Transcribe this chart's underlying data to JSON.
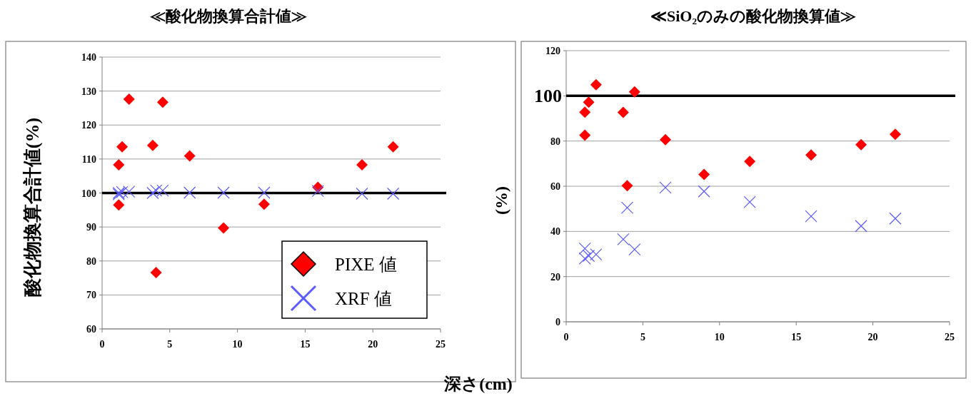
{
  "chart_data": [
    {
      "type": "scatter",
      "title": "≪酸化物換算合計値≫",
      "xlabel": "深さ(cm)",
      "ylabel": "酸化物換算合計値(%)",
      "x": [
        1.23,
        1.48,
        1.99,
        1.23,
        3.74,
        4.48,
        3.99,
        6.47,
        8.97,
        11.97,
        15.94,
        19.2,
        21.5
      ],
      "series": [
        {
          "name": "PIXE 値",
          "color": "#ff0000",
          "marker": "diamond",
          "values": [
            108.3,
            113.6,
            127.6,
            96.5,
            114.0,
            126.7,
            76.6,
            110.9,
            89.7,
            96.7,
            101.7,
            108.3,
            113.6
          ]
        },
        {
          "name": "XRF 値",
          "color": "#5a5aff",
          "marker": "cross",
          "values": [
            99.6,
            100.3,
            100.4,
            100.0,
            100.0,
            100.7,
            100.7,
            100.1,
            100.1,
            100.1,
            100.6,
            99.8,
            99.8
          ]
        }
      ],
      "xlim": [
        0,
        25
      ],
      "xticks": [
        0,
        5,
        10,
        15,
        20,
        25
      ],
      "ylim": [
        60,
        140
      ],
      "yticks": [
        60,
        70,
        80,
        90,
        100,
        110,
        120,
        130,
        140
      ],
      "grid": "y",
      "legend": "bottom right",
      "ref_lines": [
        {
          "axis": "y",
          "value": 100,
          "color": "#000000"
        }
      ]
    },
    {
      "type": "scatter",
      "title": "≪SiO₂のみの酸化物換算値≫",
      "ylabel": "(%)",
      "x": [
        1.22,
        1.22,
        1.47,
        1.95,
        3.72,
        3.98,
        4.46,
        6.47,
        8.99,
        11.97,
        15.97,
        19.23,
        21.46
      ],
      "series": [
        {
          "color": "#ff0000",
          "marker": "diamond",
          "values": [
            92.8,
            82.6,
            97.2,
            104.9,
            92.7,
            60.2,
            101.8,
            80.6,
            65.2,
            71.0,
            73.8,
            78.4,
            83.0
          ]
        },
        {
          "color": "#5a5aff",
          "marker": "cross",
          "values": [
            32.4,
            28.0,
            29.2,
            29.8,
            36.5,
            50.5,
            32.0,
            59.4,
            57.7,
            53.0,
            46.7,
            42.4,
            45.7
          ]
        }
      ],
      "xlim": [
        0,
        25
      ],
      "xticks": [
        0,
        5,
        10,
        15,
        20,
        25
      ],
      "ylim": [
        0,
        120
      ],
      "yticks": [
        0,
        20,
        40,
        60,
        80,
        {
          "value": 100,
          "label": null
        },
        120
      ],
      "grid": "y",
      "ref_lines": [
        {
          "axis": "y",
          "value": 100,
          "color": "#000000",
          "label": "100"
        }
      ]
    }
  ]
}
